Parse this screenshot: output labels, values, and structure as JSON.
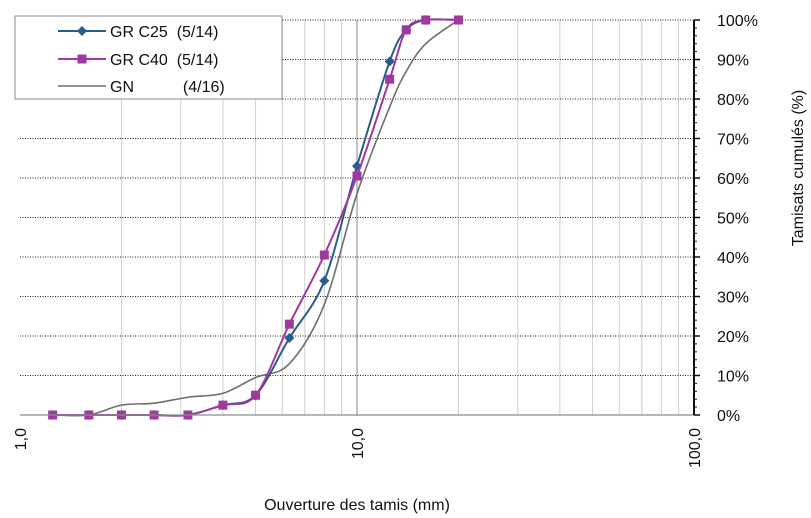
{
  "chart_data": {
    "type": "line",
    "xscale": "log",
    "xlim": [
      1,
      100
    ],
    "ylim": [
      0,
      100
    ],
    "xlabel": "Ouverture des tamis (mm)",
    "ylabel": "Tamisats cumulés (%)",
    "x_tick_labels": [
      "1,0",
      "10,0",
      "100,0"
    ],
    "y_tick_labels": [
      "0%",
      "10%",
      "20%",
      "30%",
      "40%",
      "50%",
      "60%",
      "70%",
      "80%",
      "90%",
      "100%"
    ],
    "grid": true,
    "legend_position": "top-left",
    "series": [
      {
        "name": "GR C25  (5/14)",
        "color": "#2E5C8A",
        "marker": "diamond",
        "x": [
          1.25,
          1.6,
          2,
          2.5,
          3.15,
          4,
          5,
          6.3,
          8,
          10,
          12.5,
          14,
          16,
          20
        ],
        "y": [
          0,
          0,
          0,
          0,
          0,
          2.5,
          5,
          19.5,
          34,
          63,
          89.5,
          97.5,
          100,
          100
        ]
      },
      {
        "name": "GR C40  (5/14)",
        "color": "#9E3A9E",
        "marker": "square",
        "x": [
          1.25,
          1.6,
          2,
          2.5,
          3.15,
          4,
          5,
          6.3,
          8,
          10,
          12.5,
          14,
          16,
          20
        ],
        "y": [
          0,
          0,
          0,
          0,
          0,
          2.5,
          5,
          23,
          40.5,
          60.5,
          85,
          97.5,
          100,
          100
        ]
      },
      {
        "name": "GN           (4/16)",
        "color": "#6E6E6E",
        "marker": "none",
        "x": [
          1.25,
          1.6,
          2,
          2.5,
          3.15,
          4,
          5,
          6.3,
          8,
          10,
          12.5,
          14,
          16,
          20
        ],
        "y": [
          0,
          0,
          2.5,
          3,
          4.5,
          5.5,
          9.5,
          13,
          28,
          56,
          78,
          87,
          94,
          100
        ]
      }
    ]
  }
}
